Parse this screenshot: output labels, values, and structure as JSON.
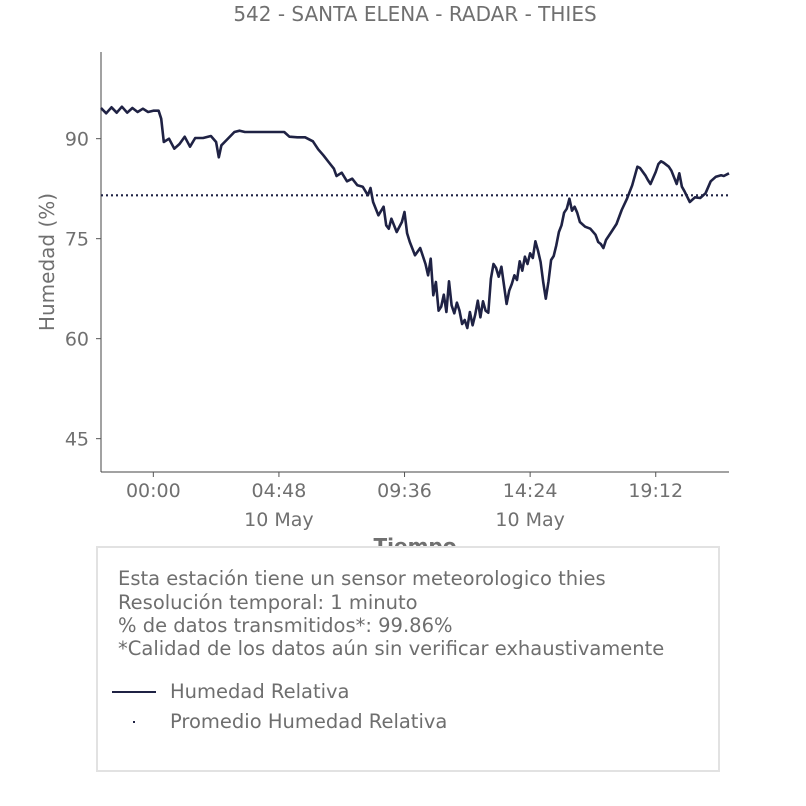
{
  "chart_data": {
    "type": "line",
    "title": "542 - SANTA ELENA - RADAR - THIES",
    "xlabel": "Tiempo",
    "ylabel": "Humedad (%)",
    "ylim": [
      40,
      103
    ],
    "yticks": [
      45,
      60,
      75,
      90
    ],
    "xlim_hours": [
      -2.0,
      22.0
    ],
    "xtick_labels": [
      {
        "hour": 0.0,
        "time": "00:00",
        "date": ""
      },
      {
        "hour": 4.8,
        "time": "04:48",
        "date": "10 May"
      },
      {
        "hour": 9.6,
        "time": "09:36",
        "date": ""
      },
      {
        "hour": 14.4,
        "time": "14:24",
        "date": "10 May"
      },
      {
        "hour": 19.2,
        "time": "19:12",
        "date": ""
      }
    ],
    "grid": false,
    "series": [
      {
        "name": "Humedad Relativ​a",
        "color": "#1f2244",
        "style": "solid",
        "points": [
          [
            -2.0,
            94.6
          ],
          [
            -1.8,
            93.8
          ],
          [
            -1.6,
            94.7
          ],
          [
            -1.4,
            93.9
          ],
          [
            -1.2,
            94.8
          ],
          [
            -1.0,
            93.9
          ],
          [
            -0.8,
            94.6
          ],
          [
            -0.6,
            94.0
          ],
          [
            -0.4,
            94.5
          ],
          [
            -0.2,
            94.0
          ],
          [
            0.0,
            94.2
          ],
          [
            0.2,
            94.2
          ],
          [
            0.3,
            93.0
          ],
          [
            0.4,
            89.5
          ],
          [
            0.6,
            90.0
          ],
          [
            0.8,
            88.5
          ],
          [
            1.0,
            89.2
          ],
          [
            1.2,
            90.3
          ],
          [
            1.4,
            88.8
          ],
          [
            1.6,
            90.1
          ],
          [
            1.9,
            90.1
          ],
          [
            2.2,
            90.4
          ],
          [
            2.4,
            89.5
          ],
          [
            2.5,
            87.2
          ],
          [
            2.6,
            89.0
          ],
          [
            2.8,
            89.8
          ],
          [
            3.1,
            91.0
          ],
          [
            3.3,
            91.2
          ],
          [
            3.5,
            91.0
          ],
          [
            4.0,
            91.0
          ],
          [
            4.5,
            91.0
          ],
          [
            5.0,
            91.0
          ],
          [
            5.2,
            90.3
          ],
          [
            5.5,
            90.2
          ],
          [
            5.8,
            90.2
          ],
          [
            6.1,
            89.6
          ],
          [
            6.3,
            88.4
          ],
          [
            6.5,
            87.5
          ],
          [
            6.7,
            86.5
          ],
          [
            6.9,
            85.5
          ],
          [
            7.0,
            84.4
          ],
          [
            7.2,
            84.9
          ],
          [
            7.4,
            83.6
          ],
          [
            7.6,
            84.0
          ],
          [
            7.8,
            83.0
          ],
          [
            8.0,
            82.8
          ],
          [
            8.2,
            81.5
          ],
          [
            8.3,
            82.6
          ],
          [
            8.4,
            80.5
          ],
          [
            8.6,
            78.5
          ],
          [
            8.8,
            79.8
          ],
          [
            8.9,
            77.0
          ],
          [
            9.0,
            76.5
          ],
          [
            9.1,
            78.0
          ],
          [
            9.3,
            76.0
          ],
          [
            9.5,
            77.5
          ],
          [
            9.6,
            79.0
          ],
          [
            9.7,
            75.8
          ],
          [
            9.8,
            74.5
          ],
          [
            10.0,
            72.5
          ],
          [
            10.2,
            73.6
          ],
          [
            10.4,
            71.2
          ],
          [
            10.5,
            69.5
          ],
          [
            10.6,
            72.0
          ],
          [
            10.7,
            66.5
          ],
          [
            10.8,
            68.5
          ],
          [
            10.9,
            64.2
          ],
          [
            11.0,
            64.8
          ],
          [
            11.1,
            66.6
          ],
          [
            11.2,
            64.0
          ],
          [
            11.3,
            68.6
          ],
          [
            11.4,
            65.0
          ],
          [
            11.5,
            63.8
          ],
          [
            11.6,
            65.4
          ],
          [
            11.7,
            64.2
          ],
          [
            11.8,
            62.2
          ],
          [
            11.9,
            62.8
          ],
          [
            12.0,
            61.6
          ],
          [
            12.1,
            64.0
          ],
          [
            12.2,
            62.0
          ],
          [
            12.3,
            63.6
          ],
          [
            12.4,
            65.7
          ],
          [
            12.5,
            63.2
          ],
          [
            12.6,
            65.6
          ],
          [
            12.7,
            64.2
          ],
          [
            12.8,
            63.9
          ],
          [
            12.9,
            69.0
          ],
          [
            13.0,
            71.2
          ],
          [
            13.1,
            70.6
          ],
          [
            13.2,
            69.3
          ],
          [
            13.3,
            70.8
          ],
          [
            13.4,
            68.0
          ],
          [
            13.5,
            65.2
          ],
          [
            13.6,
            67.2
          ],
          [
            13.7,
            68.2
          ],
          [
            13.8,
            69.5
          ],
          [
            13.9,
            68.8
          ],
          [
            14.0,
            71.6
          ],
          [
            14.1,
            70.2
          ],
          [
            14.2,
            72.3
          ],
          [
            14.3,
            71.2
          ],
          [
            14.4,
            72.8
          ],
          [
            14.5,
            72.1
          ],
          [
            14.6,
            74.6
          ],
          [
            14.7,
            73.2
          ],
          [
            14.8,
            71.5
          ],
          [
            14.9,
            68.5
          ],
          [
            15.0,
            66.0
          ],
          [
            15.1,
            68.6
          ],
          [
            15.2,
            71.8
          ],
          [
            15.3,
            72.4
          ],
          [
            15.4,
            74.0
          ],
          [
            15.5,
            76.0
          ],
          [
            15.6,
            77.0
          ],
          [
            15.7,
            78.9
          ],
          [
            15.8,
            79.5
          ],
          [
            15.9,
            81.0
          ],
          [
            16.0,
            79.2
          ],
          [
            16.1,
            79.8
          ],
          [
            16.2,
            78.9
          ],
          [
            16.3,
            77.5
          ],
          [
            16.5,
            76.8
          ],
          [
            16.7,
            76.5
          ],
          [
            16.9,
            75.6
          ],
          [
            17.0,
            74.5
          ],
          [
            17.1,
            74.2
          ],
          [
            17.2,
            73.6
          ],
          [
            17.3,
            74.8
          ],
          [
            17.5,
            76.0
          ],
          [
            17.7,
            77.2
          ],
          [
            17.9,
            79.3
          ],
          [
            18.1,
            81.0
          ],
          [
            18.3,
            83.0
          ],
          [
            18.4,
            84.4
          ],
          [
            18.5,
            85.8
          ],
          [
            18.6,
            85.6
          ],
          [
            18.8,
            84.5
          ],
          [
            18.9,
            83.8
          ],
          [
            19.0,
            83.2
          ],
          [
            19.2,
            85.0
          ],
          [
            19.3,
            86.2
          ],
          [
            19.4,
            86.6
          ],
          [
            19.5,
            86.4
          ],
          [
            19.7,
            85.8
          ],
          [
            19.8,
            85.2
          ],
          [
            20.0,
            83.2
          ],
          [
            20.1,
            84.8
          ],
          [
            20.2,
            82.8
          ],
          [
            20.3,
            82.1
          ],
          [
            20.5,
            80.5
          ],
          [
            20.7,
            81.2
          ],
          [
            20.9,
            81.1
          ],
          [
            21.1,
            81.8
          ],
          [
            21.3,
            83.6
          ],
          [
            21.5,
            84.3
          ],
          [
            21.7,
            84.5
          ],
          [
            21.8,
            84.4
          ],
          [
            22.0,
            84.8
          ]
        ]
      },
      {
        "name": "Promedio Humedad Relativa",
        "color": "#1f2244",
        "style": "dotted",
        "value": 81.5
      }
    ]
  },
  "info": {
    "line1": "Esta estación tiene un sensor meteorologico thies",
    "line2": "Resolución temporal: 1 minuto",
    "line3": "% de datos transmitidos*: 99.86%",
    "line4": "*Calidad de los datos aún sin verificar exhaustivamente"
  },
  "legend": {
    "item1": "Humedad Relativa",
    "item2": "Promedio Humedad Relativa"
  }
}
